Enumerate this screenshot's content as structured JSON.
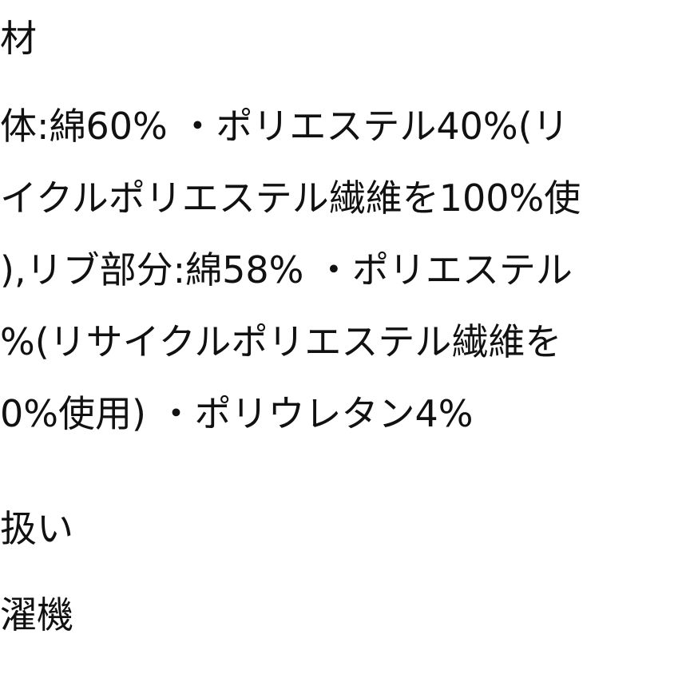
{
  "lines": [
    "材",
    "体:綿60% ・ポリエステル40%(リ",
    "イクルポリエステル繊維を100%使",
    "),リブ部分:綿58% ・ポリエステル",
    "%(リサイクルポリエステル繊維を",
    "0%使用) ・ポリウレタン4%",
    "扱い",
    "濯機"
  ]
}
